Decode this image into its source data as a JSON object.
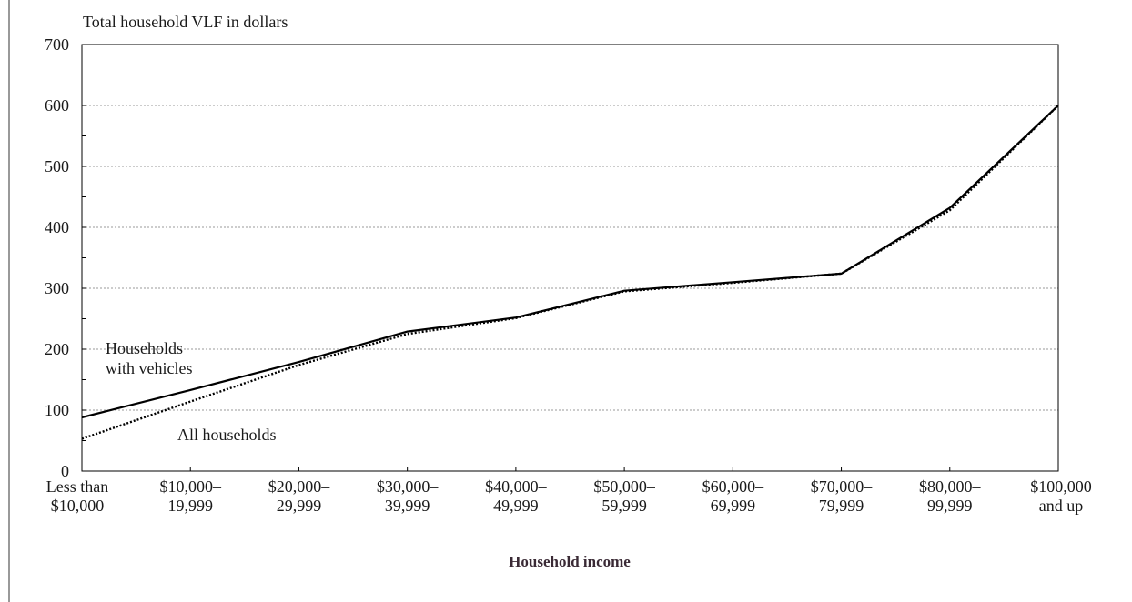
{
  "chart_data": {
    "type": "line",
    "title": "",
    "ylabel": "Total household VLF in dollars",
    "xlabel": "Household income",
    "ylim": [
      0,
      700
    ],
    "yticks": [
      0,
      100,
      200,
      300,
      400,
      500,
      600,
      700
    ],
    "grid": true,
    "categories": [
      [
        "Less than",
        "$10,000"
      ],
      [
        "$10,000–",
        "19,999"
      ],
      [
        "$20,000–",
        "29,999"
      ],
      [
        "$30,000–",
        "39,999"
      ],
      [
        "$40,000–",
        "49,999"
      ],
      [
        "$50,000–",
        "59,999"
      ],
      [
        "$60,000–",
        "69,999"
      ],
      [
        "$70,000–",
        "79,999"
      ],
      [
        "$80,000–",
        "99,999"
      ],
      [
        "$100,000",
        "and up"
      ]
    ],
    "series": [
      {
        "name": "Households with vehicles",
        "label_lines": [
          "Households",
          "with vehicles"
        ],
        "style": "solid",
        "color": "#000000",
        "values": [
          88,
          133,
          179,
          229,
          252,
          296,
          310,
          324,
          432,
          600
        ]
      },
      {
        "name": "All households",
        "label_lines": [
          "All households"
        ],
        "style": "dotted",
        "color": "#000000",
        "values": [
          53,
          114,
          174,
          225,
          251,
          295,
          309,
          324,
          428,
          600
        ]
      }
    ]
  }
}
